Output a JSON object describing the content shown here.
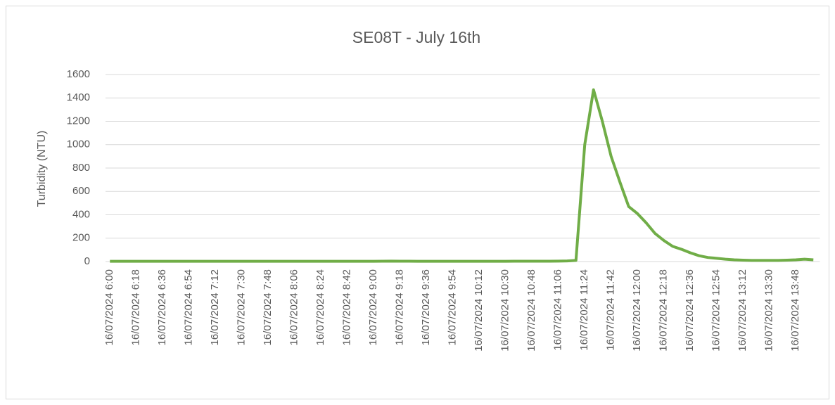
{
  "chart_data": {
    "type": "line",
    "title": "SE08T - July 16th",
    "y_label": "Turbidity (NTU)",
    "categories": [
      "16/07/2024 6:00",
      null,
      null,
      "16/07/2024 6:18",
      null,
      null,
      "16/07/2024 6:36",
      null,
      null,
      "16/07/2024 6:54",
      null,
      null,
      "16/07/2024 7:12",
      null,
      null,
      "16/07/2024 7:30",
      null,
      null,
      "16/07/2024 7:48",
      null,
      null,
      "16/07/2024 8:06",
      null,
      null,
      "16/07/2024 8:24",
      null,
      null,
      "16/07/2024 8:42",
      null,
      null,
      "16/07/2024 9:00",
      null,
      null,
      "16/07/2024 9:18",
      null,
      null,
      "16/07/2024 9:36",
      null,
      null,
      "16/07/2024 9:54",
      null,
      null,
      "16/07/2024 10:12",
      null,
      null,
      "16/07/2024 10:30",
      null,
      null,
      "16/07/2024 10:48",
      null,
      null,
      "16/07/2024 11:06",
      null,
      null,
      "16/07/2024 11:24",
      null,
      null,
      "16/07/2024 11:42",
      null,
      null,
      "16/07/2024 12:00",
      null,
      null,
      "16/07/2024 12:18",
      null,
      null,
      "16/07/2024 12:36",
      null,
      null,
      "16/07/2024 12:54",
      null,
      null,
      "16/07/2024 13:12",
      null,
      null,
      "16/07/2024 13:30",
      null,
      null,
      "16/07/2024 13:48",
      null,
      null
    ],
    "series": [
      {
        "name": "Turbidity",
        "color": "#70ad47",
        "values": [
          2,
          2,
          2,
          2,
          2,
          2,
          2,
          2,
          2,
          2,
          2,
          2,
          2,
          2,
          2,
          2,
          2,
          2,
          2,
          2,
          2,
          2,
          2,
          2,
          2,
          2,
          2,
          2,
          2,
          2,
          2,
          3,
          4,
          3,
          3,
          2,
          2,
          2,
          2,
          2,
          2,
          2,
          2,
          2,
          2,
          2,
          3,
          3,
          3,
          3,
          3,
          4,
          5,
          10,
          1000,
          1470,
          1200,
          900,
          680,
          470,
          410,
          330,
          240,
          180,
          130,
          105,
          75,
          50,
          35,
          28,
          20,
          15,
          12,
          10,
          10,
          10,
          10,
          12,
          15,
          20,
          15
        ]
      }
    ],
    "ylim": [
      0,
      1600
    ],
    "yticks": [
      0,
      200,
      400,
      600,
      800,
      1000,
      1200,
      1400,
      1600
    ],
    "grid": true
  }
}
